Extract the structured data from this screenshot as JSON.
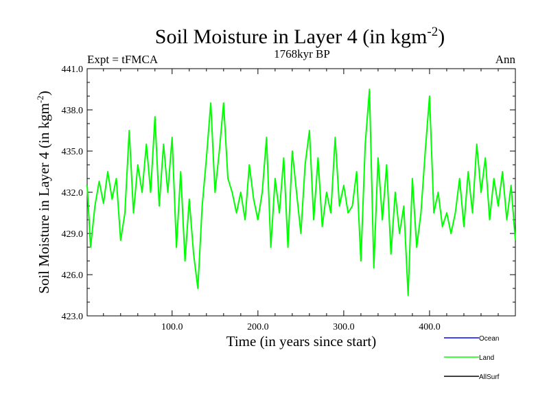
{
  "chart_data": {
    "type": "line",
    "title": "Soil Moisture in Layer 4 (in kgm",
    "title_sup": "-2",
    "title_close": ")",
    "subtitle_left": "Expt = tFMCA",
    "subtitle_center": "1768kyr BP",
    "subtitle_right": "Ann",
    "xlabel": "Time (in years since start)",
    "ylabel": "Soil Moisture in Layer 4 (in kgm",
    "ylabel_sup": "-2",
    "ylabel_close": ")",
    "xlim": [
      1,
      500
    ],
    "ylim": [
      423.0,
      441.0
    ],
    "x_ticks": [
      100,
      200,
      300,
      400
    ],
    "x_tick_labels": [
      "100.0",
      "200.0",
      "300.0",
      "400.0"
    ],
    "y_ticks": [
      423,
      426,
      429,
      432,
      435,
      438,
      441
    ],
    "y_tick_labels": [
      "423.0",
      "426.0",
      "429.0",
      "432.0",
      "435.0",
      "438.0",
      "441.0"
    ],
    "legend": [
      {
        "name": "Ocean",
        "color": "#0000ff"
      },
      {
        "name": "Land",
        "color": "#00ff00"
      },
      {
        "name": "AllSurf",
        "color": "#000000"
      }
    ],
    "series": [
      {
        "name": "Land",
        "color": "#00ff00",
        "x": [
          1,
          5,
          10,
          15,
          20,
          25,
          30,
          35,
          40,
          45,
          50,
          55,
          60,
          65,
          70,
          75,
          80,
          85,
          90,
          95,
          100,
          105,
          110,
          115,
          120,
          125,
          130,
          135,
          140,
          145,
          150,
          155,
          160,
          165,
          170,
          175,
          180,
          185,
          190,
          195,
          200,
          205,
          210,
          215,
          220,
          225,
          230,
          235,
          240,
          245,
          250,
          255,
          260,
          265,
          270,
          275,
          280,
          285,
          290,
          295,
          300,
          305,
          310,
          315,
          320,
          325,
          330,
          335,
          340,
          345,
          350,
          355,
          360,
          365,
          370,
          375,
          380,
          385,
          390,
          395,
          400,
          405,
          410,
          415,
          420,
          425,
          430,
          435,
          440,
          445,
          450,
          455,
          460,
          465,
          470,
          475,
          480,
          485,
          490,
          495,
          500
        ],
        "values": [
          432.5,
          428.0,
          431.0,
          432.8,
          431.2,
          433.5,
          431.5,
          433.0,
          428.5,
          430.5,
          436.5,
          430.5,
          434.0,
          432.0,
          435.5,
          432.0,
          437.5,
          431.0,
          435.5,
          432.0,
          436.0,
          428.0,
          433.5,
          427.0,
          431.5,
          427.5,
          425.0,
          431.0,
          434.5,
          438.5,
          432.0,
          435.0,
          438.5,
          433.0,
          432.0,
          430.5,
          432.0,
          430.0,
          434.0,
          431.5,
          430.0,
          432.0,
          436.0,
          428.0,
          433.0,
          430.5,
          434.5,
          428.0,
          435.0,
          432.0,
          429.0,
          434.0,
          436.5,
          430.0,
          434.5,
          429.5,
          432.0,
          430.5,
          436.0,
          431.0,
          432.5,
          430.5,
          431.0,
          433.5,
          427.0,
          435.5,
          439.5,
          426.5,
          434.5,
          430.0,
          434.0,
          427.5,
          432.0,
          429.0,
          431.0,
          424.5,
          433.0,
          428.0,
          430.5,
          435.0,
          439.0,
          430.5,
          432.0,
          429.5,
          430.5,
          429.0,
          430.5,
          433.0,
          429.5,
          433.5,
          430.5,
          435.5,
          432.0,
          434.5,
          430.0,
          433.0,
          431.0,
          433.5,
          430.0,
          432.5,
          428.5
        ]
      }
    ]
  }
}
